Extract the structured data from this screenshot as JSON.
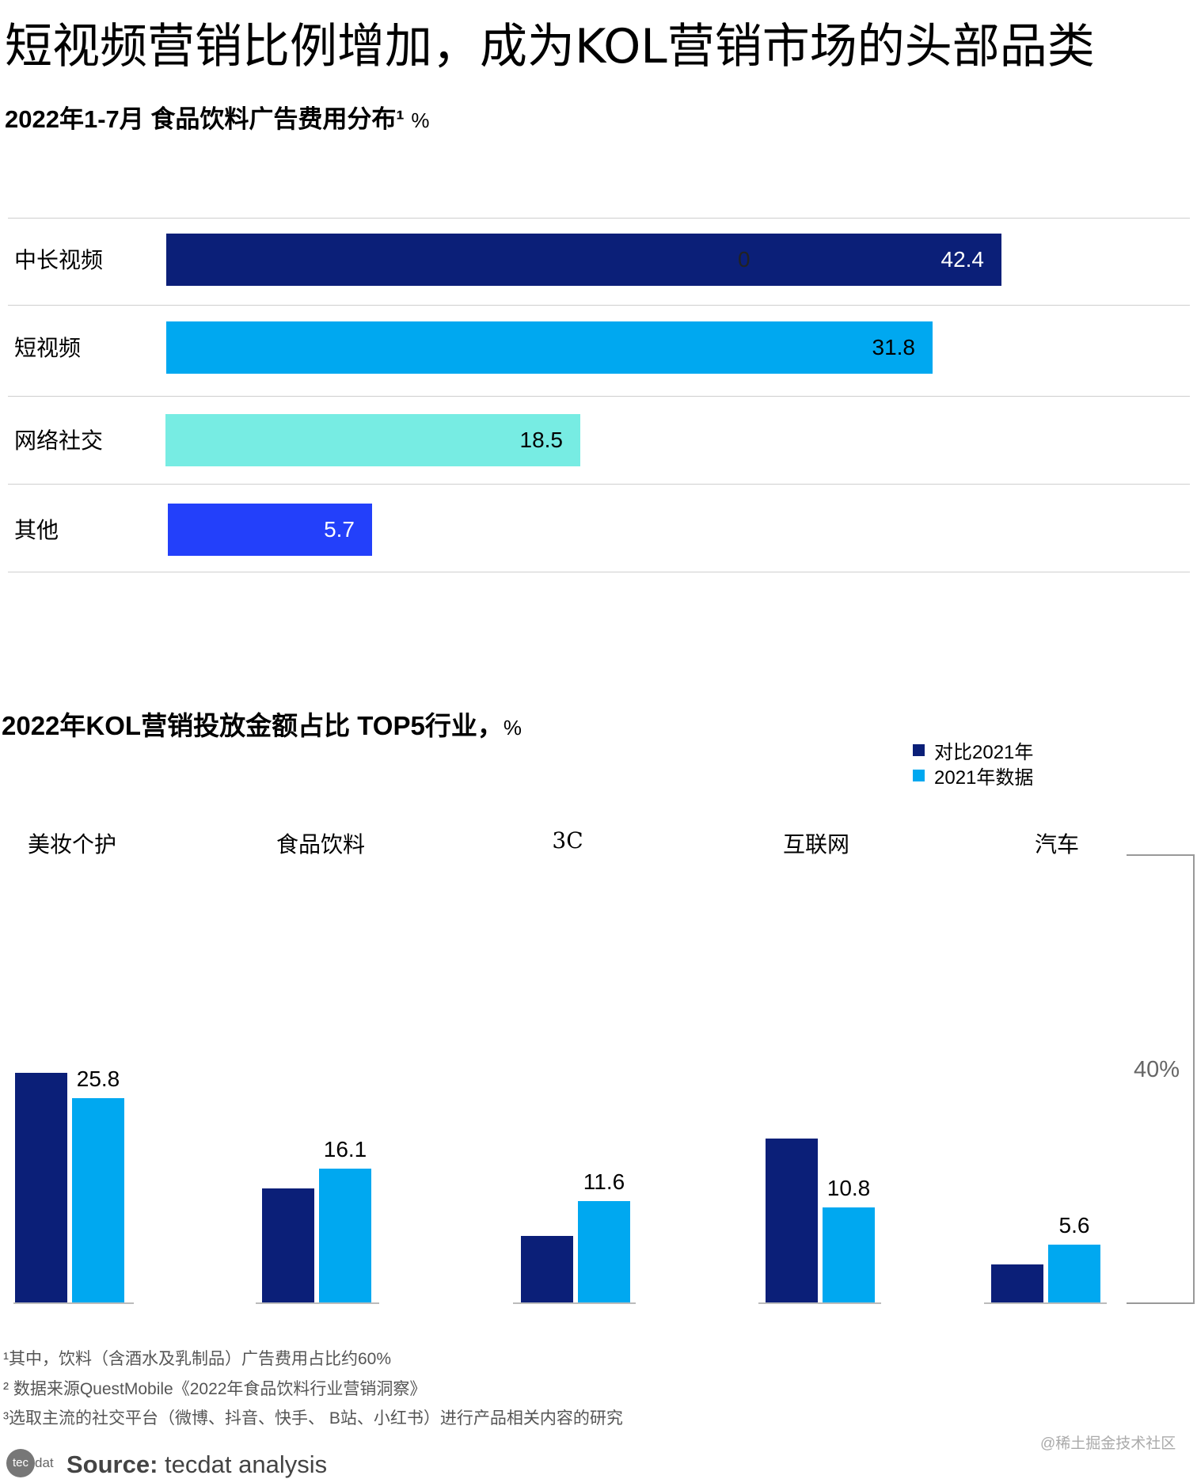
{
  "title": "短视频营销比例增加，成为KOL营销市场的头部品类",
  "chart_data": [
    {
      "type": "bar",
      "orientation": "horizontal",
      "title": "2022年1-7月 食品饮料广告费用分布¹",
      "unit": "%",
      "categories": [
        "中长视频",
        "短视频",
        "网络社交",
        "其他"
      ],
      "values": [
        42.4,
        31.8,
        18.5,
        5.7
      ],
      "value_labels": [
        "42.4",
        "31.8",
        "18.5",
        "5.7"
      ],
      "stray_label": "0",
      "colors": [
        "#0b1f78",
        "#00a8f0",
        "#77ece3",
        "#2340fa"
      ]
    },
    {
      "type": "bar",
      "title": "2022年KOL营销投放金额占比 TOP5行业，",
      "unit": "%",
      "categories": [
        "美妆个护",
        "食品饮料",
        "3C",
        "互联网",
        "汽车"
      ],
      "series": [
        {
          "name": "对比2021年",
          "color": "#0b1f78",
          "values": [
            29.2,
            13.4,
            6.9,
            20.2,
            2.9
          ]
        },
        {
          "name": "2021年数据",
          "color": "#00a8f0",
          "values": [
            25.8,
            16.1,
            11.6,
            10.8,
            5.6
          ],
          "labels": [
            "25.8",
            "16.1",
            "11.6",
            "10.8",
            "5.6"
          ]
        }
      ],
      "side_label": "40%",
      "legend": "top-right"
    }
  ],
  "footnotes": [
    "¹其中，饮料（含酒水及乳制品）广告费用占比约60%",
    "² 数据来源QuestMobile《2022年食品饮料行业营销洞察》",
    "³选取主流的社交平台（微博、抖音、快手、 B站、小红书）进行产品相关内容的研究"
  ],
  "watermark": "@稀土掘金技术社区",
  "logo": "tecdat",
  "source_label": "Source:",
  "source_text": " tecdat analysis"
}
